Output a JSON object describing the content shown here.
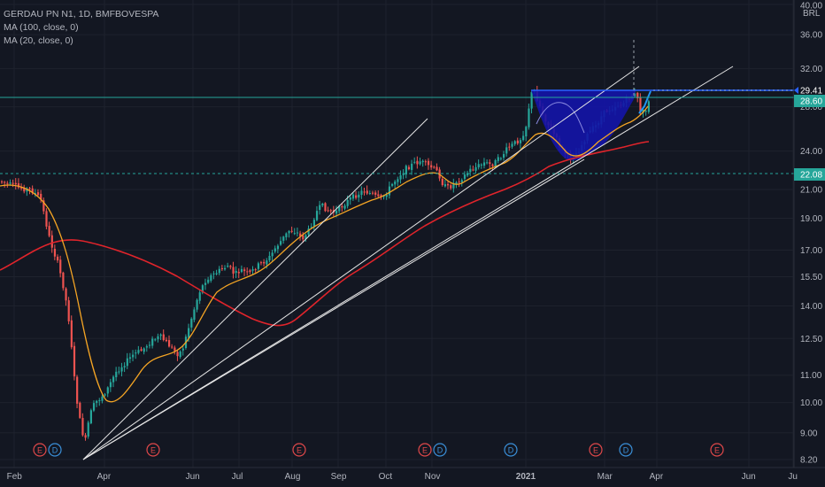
{
  "header": {
    "symbol_line": "GERDAU PN N1, 1D, BMFBOVESPA",
    "ma1_label": "MA (100, close, 0)",
    "ma2_label": "MA (20, close, 0)"
  },
  "colors": {
    "background": "#131722",
    "candle_up": "#26a69a",
    "candle_down": "#ef5350",
    "ma100": "#e0242b",
    "ma20": "#f5a524",
    "trendline": "#e6e6e6",
    "cup_fill": "#1414a8",
    "live_line": "#2196f3",
    "level_line_green": "#26a69a",
    "level_line_blue": "#2962ff",
    "earnings_badge": "#e0484a",
    "dividend_badge": "#3a8fd8"
  },
  "axis": {
    "currency": "BRL",
    "y_ticks": [
      "40.00",
      "36.00",
      "32.00",
      "28.00",
      "24.00",
      "21.00",
      "19.00",
      "17.00",
      "15.50",
      "14.00",
      "12.50",
      "11.00",
      "10.00",
      "9.00",
      "8.20"
    ],
    "x_ticks": [
      "Feb",
      "Apr",
      "Jun",
      "Jul",
      "Aug",
      "Sep",
      "Oct",
      "Nov",
      "2021",
      "Mar",
      "Apr",
      "Jun",
      "Ju"
    ],
    "price_labels": [
      {
        "text": "29.41",
        "kind": "current"
      },
      {
        "text": "28.60",
        "kind": "level"
      },
      {
        "text": "22.08",
        "kind": "level"
      }
    ]
  },
  "events": [
    {
      "type": "E"
    },
    {
      "type": "D"
    },
    {
      "type": "E"
    },
    {
      "type": "E"
    },
    {
      "type": "E"
    },
    {
      "type": "D"
    },
    {
      "type": "D"
    },
    {
      "type": "E"
    },
    {
      "type": "D"
    },
    {
      "type": "E"
    }
  ],
  "chart_data": {
    "type": "candlestick",
    "title": "GERDAU PN N1, 1D, BMFBOVESPA",
    "ylabel": "BRL",
    "yscale": "log",
    "ylim": [
      8.2,
      40.0
    ],
    "series": [
      {
        "name": "MA (100, close, 0)",
        "values_description": "slow moving average"
      },
      {
        "name": "MA (20, close, 0)",
        "values_description": "fast moving average"
      }
    ],
    "key_levels": [
      29.41,
      28.6,
      22.08
    ],
    "price_anchors": [
      {
        "x": "Feb",
        "close": 21.0
      },
      {
        "x": "Mar",
        "close": 17.5
      },
      {
        "x": "late Mar",
        "close": 8.5
      },
      {
        "x": "Apr",
        "close": 10.0
      },
      {
        "x": "May",
        "close": 12.0
      },
      {
        "x": "Jun",
        "close": 14.5
      },
      {
        "x": "Jul",
        "close": 16.5
      },
      {
        "x": "Aug",
        "close": 18.5
      },
      {
        "x": "Sep",
        "close": 20.5
      },
      {
        "x": "Oct",
        "close": 22.0
      },
      {
        "x": "Nov",
        "close": 21.5
      },
      {
        "x": "Dec",
        "close": 24.0
      },
      {
        "x": "2021",
        "close": 29.0
      },
      {
        "x": "late Jan",
        "close": 23.0
      },
      {
        "x": "Mar",
        "close": 27.5
      },
      {
        "x": "Apr",
        "close": 29.41
      }
    ]
  }
}
